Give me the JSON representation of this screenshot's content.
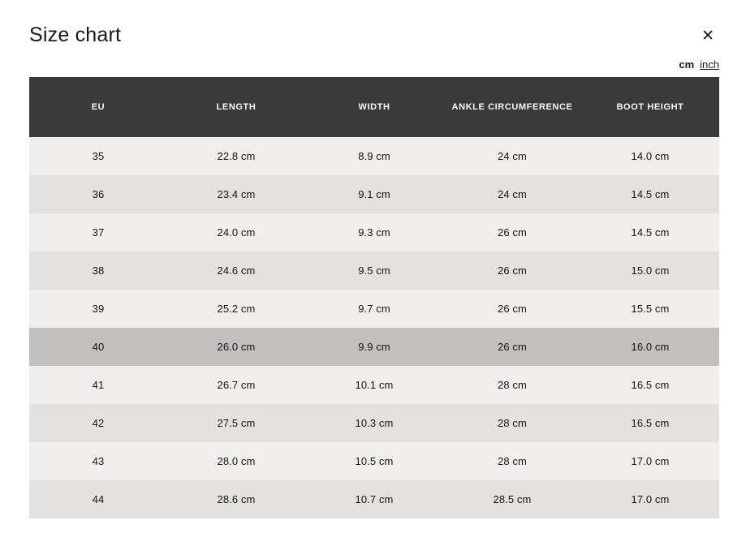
{
  "modal": {
    "title": "Size chart",
    "close_icon": "✕"
  },
  "unit_toggle": {
    "cm_label": "cm",
    "inch_label": "inch",
    "selected_unit": "cm"
  },
  "colors": {
    "header_background": "#3a3a3a",
    "header_text": "#fafafa",
    "row_light": "#f0efee",
    "row_dark": "#e3e2e1",
    "row_highlighted": "#c2c0bf",
    "text": "#141414",
    "background": "#ffffff"
  },
  "table": {
    "columns": [
      "EU",
      "LENGTH",
      "WIDTH",
      "ANKLE CIRCUMFERENCE",
      "BOOT HEIGHT"
    ],
    "highlighted_row_eu": "40",
    "rows": [
      [
        "35",
        "22.8 cm",
        "8.9 cm",
        "24 cm",
        "14.0 cm"
      ],
      [
        "36",
        "23.4 cm",
        "9.1 cm",
        "24 cm",
        "14.5 cm"
      ],
      [
        "37",
        "24.0 cm",
        "9.3 cm",
        "26 cm",
        "14.5 cm"
      ],
      [
        "38",
        "24.6 cm",
        "9.5 cm",
        "26 cm",
        "15.0 cm"
      ],
      [
        "39",
        "25.2 cm",
        "9.7 cm",
        "26 cm",
        "15.5 cm"
      ],
      [
        "40",
        "26.0 cm",
        "9.9 cm",
        "26 cm",
        "16.0 cm"
      ],
      [
        "41",
        "26.7 cm",
        "10.1 cm",
        "28 cm",
        "16.5 cm"
      ],
      [
        "42",
        "27.5 cm",
        "10.3 cm",
        "28 cm",
        "16.5 cm"
      ],
      [
        "43",
        "28.0 cm",
        "10.5 cm",
        "28 cm",
        "17.0 cm"
      ],
      [
        "44",
        "28.6 cm",
        "10.7 cm",
        "28.5 cm",
        "17.0 cm"
      ]
    ]
  }
}
